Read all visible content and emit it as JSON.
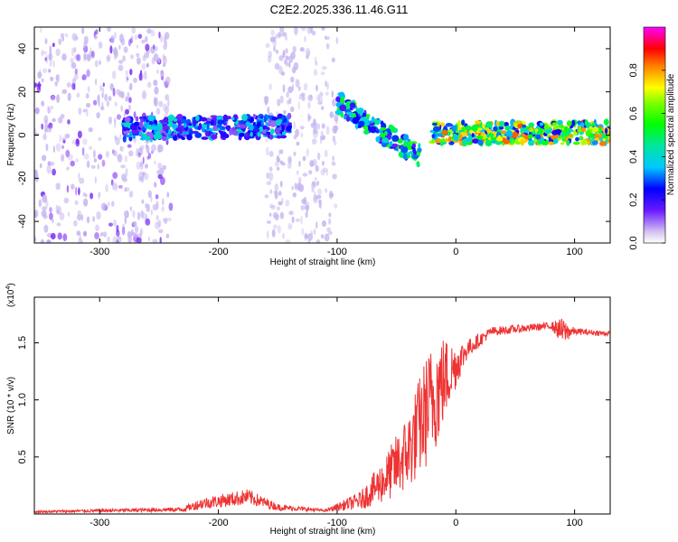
{
  "title": "C2E2.2025.336.11.46.G11",
  "chart_data": [
    {
      "type": "heatmap",
      "name": "spectrogram",
      "xlabel": "Height of straight line (km)",
      "ylabel": "Frequency (Hz)",
      "xlim": [
        -355,
        130
      ],
      "ylim": [
        -50,
        50
      ],
      "xticks": [
        -300,
        -200,
        -100,
        0,
        100
      ],
      "xtick_labels": [
        "-300",
        "-200",
        "-100",
        "0",
        "100"
      ],
      "yticks": [
        -40,
        -20,
        0,
        20,
        40
      ],
      "ytick_labels": [
        "-40",
        "-20",
        "0",
        "20",
        "40"
      ],
      "colorbar": {
        "label": "Normalized spectral amplitude",
        "range": [
          0,
          1
        ],
        "ticks": [
          0.0,
          0.2,
          0.4,
          0.6,
          0.8
        ],
        "tick_labels": [
          "0.0",
          "0.2",
          "0.4",
          "0.6",
          "0.8"
        ]
      },
      "features": [
        {
          "name": "noise-band-left",
          "x_range": [
            -355,
            -240
          ],
          "f_range": [
            -50,
            50
          ],
          "amplitude": 0.1
        },
        {
          "name": "noise-band-middle",
          "x_range": [
            -160,
            -100
          ],
          "f_range": [
            -50,
            50
          ],
          "amplitude": 0.05
        },
        {
          "name": "signal-track-1",
          "x_range": [
            -280,
            -140
          ],
          "f_center": [
            3,
            4
          ],
          "amplitude": 0.25
        },
        {
          "name": "doppler-descent",
          "x_range": [
            -100,
            -30
          ],
          "f_center": [
            15,
            -10
          ],
          "amplitude": 0.35
        },
        {
          "name": "steady-carrier",
          "x_range": [
            -20,
            130
          ],
          "f_center": [
            1,
            1
          ],
          "amplitude": 0.5
        }
      ]
    },
    {
      "type": "line",
      "name": "snr",
      "xlabel": "Height of straight line (km)",
      "ylabel": "SNR (10 * v/v)",
      "yscale_label": "(x10",
      "yscale_exponent": "4",
      "xlim": [
        -355,
        130
      ],
      "ylim": [
        0,
        1.9
      ],
      "xticks": [
        -300,
        -200,
        -100,
        0,
        100
      ],
      "xtick_labels": [
        "-300",
        "-200",
        "-100",
        "0",
        "100"
      ],
      "yticks": [
        0.5,
        1.0,
        1.5
      ],
      "ytick_labels": [
        "0.5",
        "1.0",
        "1.5"
      ],
      "color": "#ee3333",
      "envelope": [
        {
          "x": -355,
          "y": 0.02,
          "spread": 0.01
        },
        {
          "x": -230,
          "y": 0.04,
          "spread": 0.02
        },
        {
          "x": -215,
          "y": 0.09,
          "spread": 0.05
        },
        {
          "x": -175,
          "y": 0.15,
          "spread": 0.07
        },
        {
          "x": -150,
          "y": 0.06,
          "spread": 0.03
        },
        {
          "x": -110,
          "y": 0.03,
          "spread": 0.01
        },
        {
          "x": -80,
          "y": 0.12,
          "spread": 0.08
        },
        {
          "x": -60,
          "y": 0.3,
          "spread": 0.2
        },
        {
          "x": -40,
          "y": 0.55,
          "spread": 0.35
        },
        {
          "x": -25,
          "y": 0.9,
          "spread": 0.5
        },
        {
          "x": -15,
          "y": 1.1,
          "spread": 0.5
        },
        {
          "x": -8,
          "y": 1.2,
          "spread": 0.35
        },
        {
          "x": 0,
          "y": 1.3,
          "spread": 0.2
        },
        {
          "x": 10,
          "y": 1.45,
          "spread": 0.08
        },
        {
          "x": 30,
          "y": 1.6,
          "spread": 0.04
        },
        {
          "x": 80,
          "y": 1.65,
          "spread": 0.03
        },
        {
          "x": 90,
          "y": 1.6,
          "spread": 0.12
        },
        {
          "x": 100,
          "y": 1.6,
          "spread": 0.03
        },
        {
          "x": 130,
          "y": 1.58,
          "spread": 0.02
        }
      ]
    }
  ]
}
